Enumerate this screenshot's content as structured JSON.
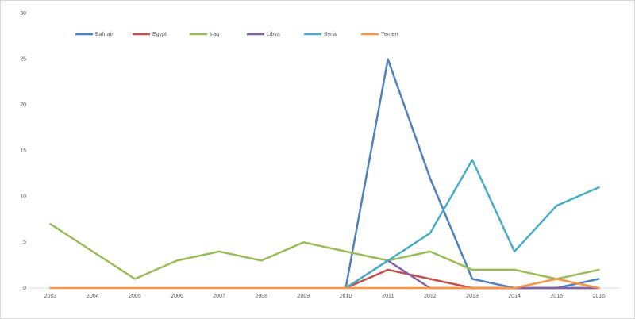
{
  "chart_data": {
    "type": "line",
    "categories": [
      "2003",
      "2004",
      "2005",
      "2006",
      "2007",
      "2008",
      "2009",
      "2010",
      "2011",
      "2012",
      "2013",
      "2014",
      "2015",
      "2016"
    ],
    "series": [
      {
        "name": "Bahrain",
        "color": "#4f81bd",
        "values": [
          null,
          null,
          null,
          null,
          null,
          null,
          null,
          0,
          25,
          12,
          1,
          0,
          0,
          1
        ]
      },
      {
        "name": "Egypt",
        "color": "#c0504d",
        "values": [
          null,
          null,
          null,
          null,
          null,
          null,
          null,
          0,
          2,
          1,
          0,
          0,
          0,
          0
        ]
      },
      {
        "name": "Iraq",
        "color": "#9bbb59",
        "values": [
          7,
          4,
          1,
          3,
          4,
          3,
          5,
          4,
          3,
          4,
          2,
          2,
          1,
          2
        ]
      },
      {
        "name": "Libya",
        "color": "#8064a2",
        "values": [
          null,
          null,
          null,
          null,
          null,
          null,
          null,
          0,
          3,
          0,
          0,
          0,
          0,
          0
        ]
      },
      {
        "name": "Syria",
        "color": "#4bacc6",
        "values": [
          null,
          null,
          null,
          null,
          null,
          null,
          null,
          0,
          3,
          6,
          14,
          4,
          9,
          11
        ]
      },
      {
        "name": "Yemen",
        "color": "#f79646",
        "values": [
          0,
          0,
          0,
          0,
          0,
          0,
          0,
          0,
          0,
          0,
          0,
          0,
          1,
          0
        ]
      }
    ],
    "ylim": [
      0,
      30
    ],
    "yticks": [
      0,
      5,
      10,
      15,
      20,
      25,
      30
    ],
    "grid": false,
    "legend": "top-left"
  }
}
